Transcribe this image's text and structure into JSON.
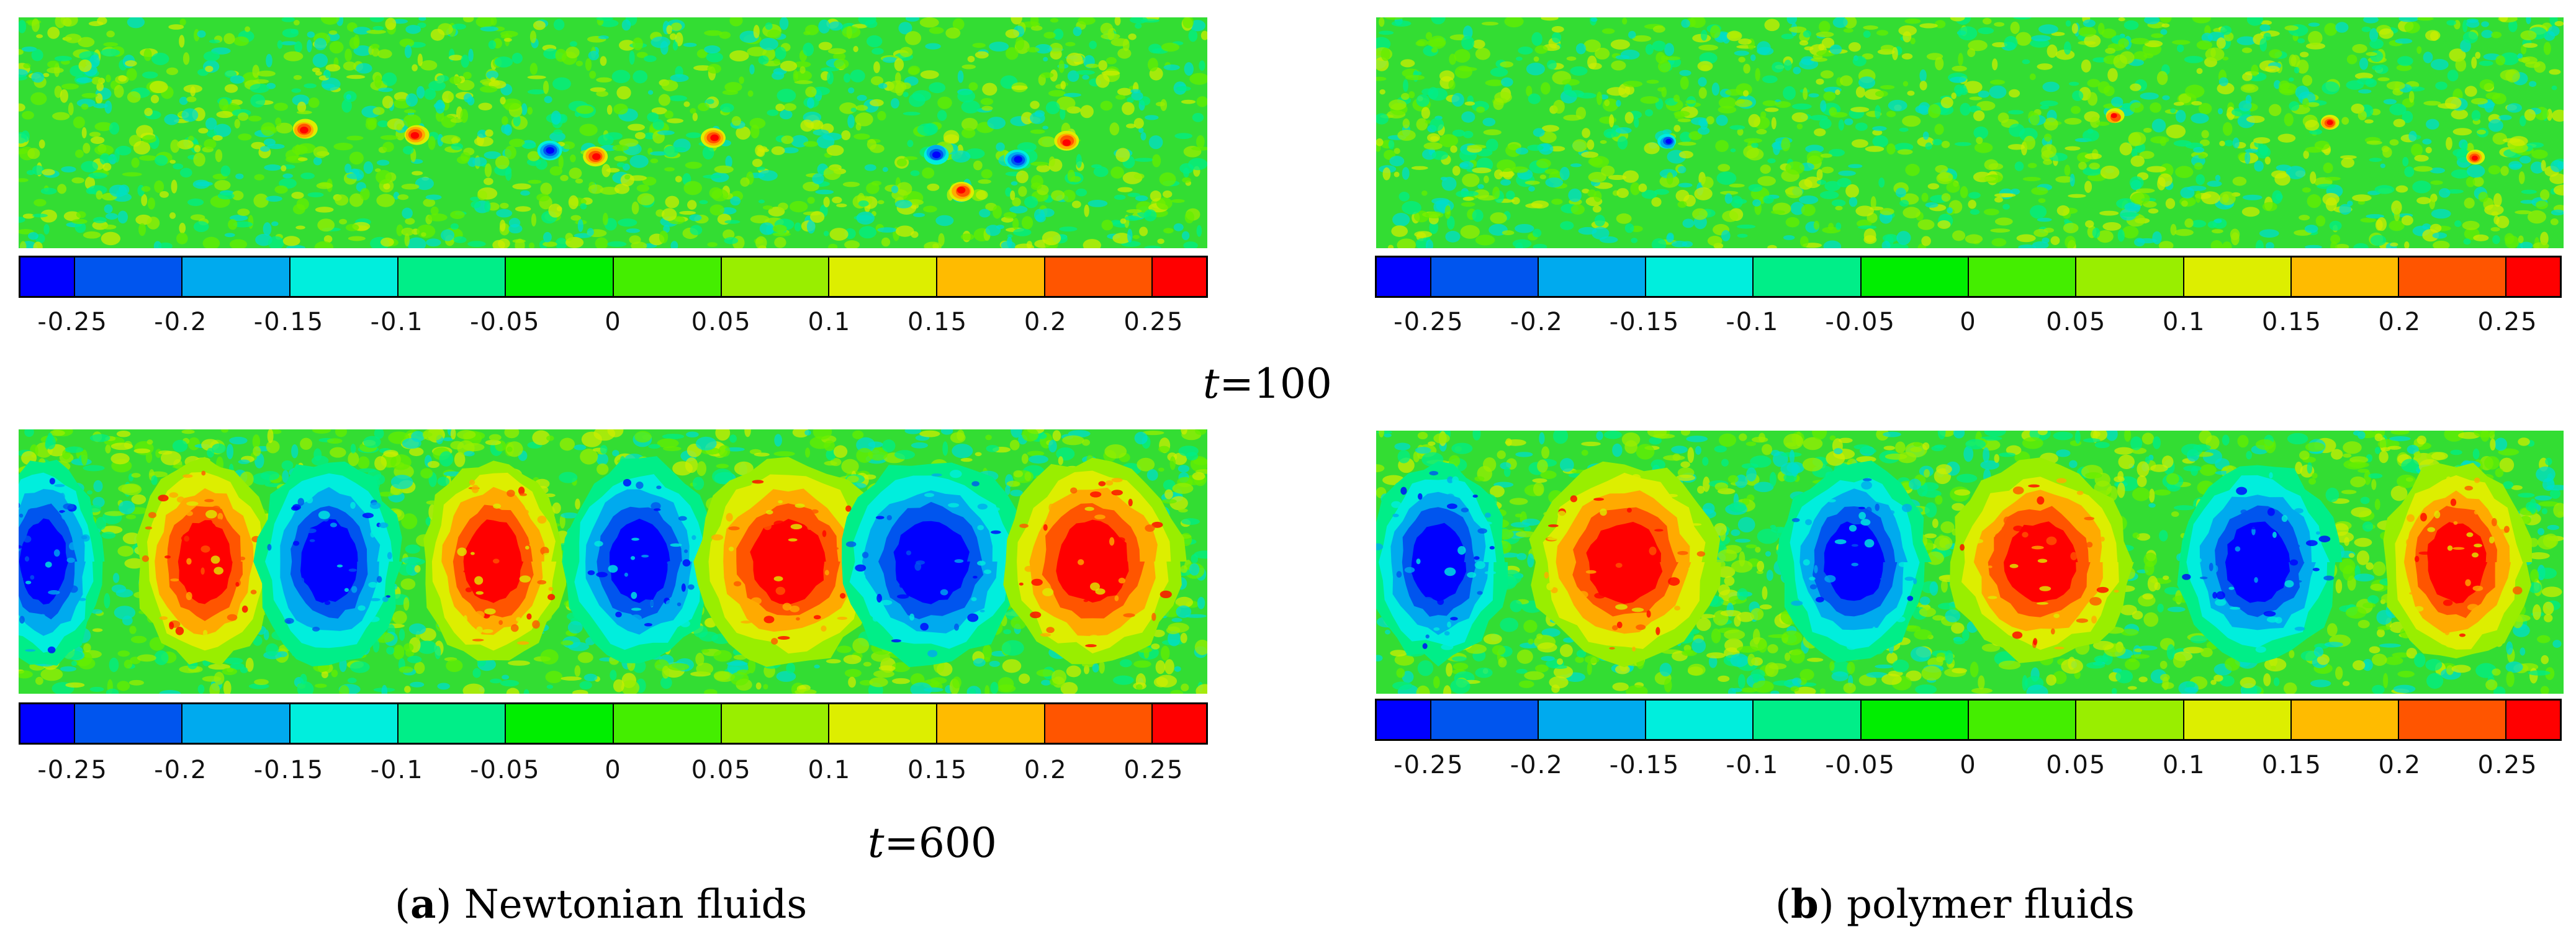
{
  "figure": {
    "colormap": {
      "ticks": [
        "-0.25",
        "-0.2",
        "-0.15",
        "-0.1",
        "-0.05",
        "0",
        "0.05",
        "0.1",
        "0.15",
        "0.2",
        "0.25"
      ],
      "colors": [
        "#0000ff",
        "#0055ee",
        "#00aaee",
        "#00eedd",
        "#00ee88",
        "#00ee00",
        "#44ee00",
        "#99ee00",
        "#ddee00",
        "#ffbb00",
        "#ff5500",
        "#ff0000"
      ]
    },
    "rows": [
      {
        "time_var": "t",
        "time_eq": "=100"
      },
      {
        "time_var": "t",
        "time_eq": "=600"
      }
    ],
    "panels": {
      "a": {
        "label": "a",
        "text": " Newtonian fluids"
      },
      "b": {
        "label": "b",
        "text": " polymer fluids"
      }
    },
    "field_background": "#33dd33",
    "vortices": {
      "a_t600": [
        "blue",
        "red",
        "blue",
        "red",
        "blue",
        "red",
        "blue",
        "red"
      ],
      "b_t600": [
        "blue",
        "red",
        "blue",
        "red",
        "blue",
        "red"
      ]
    }
  }
}
